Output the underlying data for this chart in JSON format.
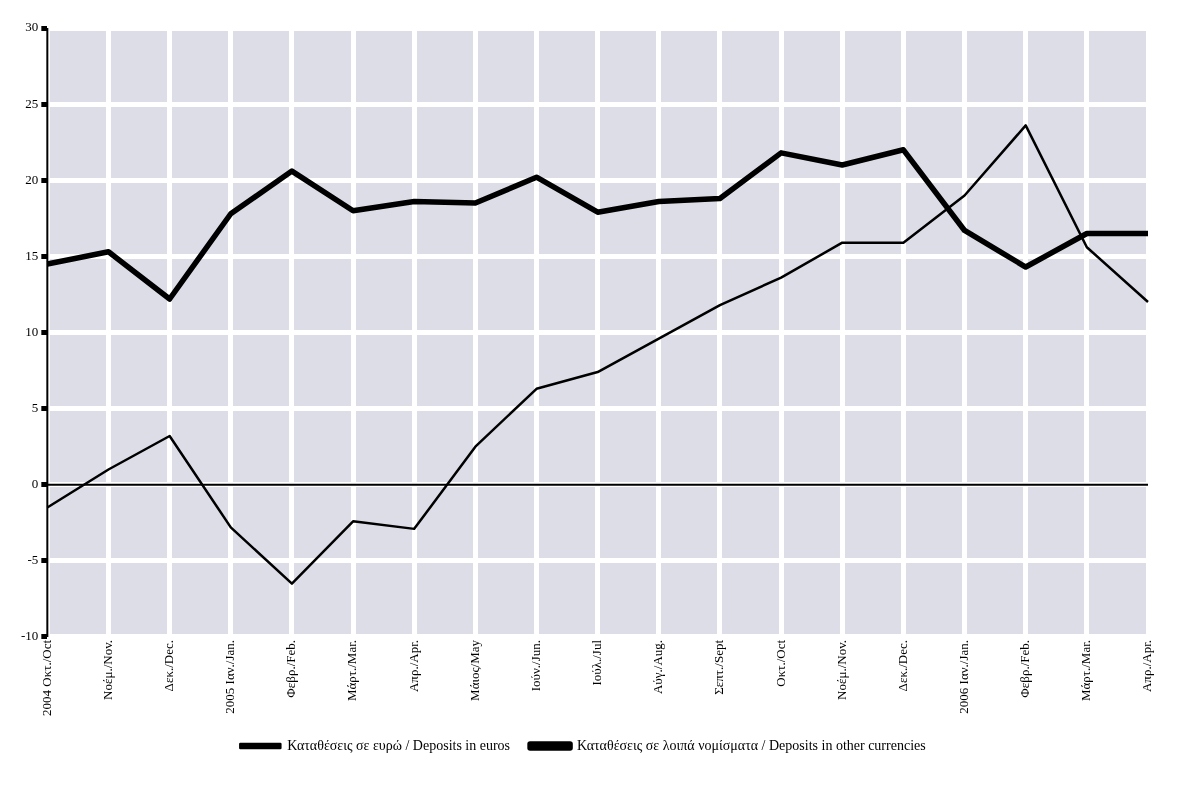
{
  "chart_data": {
    "type": "line",
    "categories": [
      "2004 Οκτ./Oct",
      "Νοέμ./Nov.",
      "Δεκ./Dec.",
      "2005 Ιαν./Jan.",
      "Φεβρ./Feb.",
      "Μάρτ./Mar.",
      "Απρ./Apr.",
      "Μάιος/May",
      "Ιούν./Jun.",
      "Ιούλ./Jul",
      "Αύγ./Aug.",
      "Σεπτ./Sept",
      "Οκτ./Oct",
      "Νοέμ./Nov.",
      "Δεκ./Dec.",
      "2006 Ιαν./Jan.",
      "Φεβρ./Feb.",
      "Μάρτ./Mar.",
      "Απρ./Apr."
    ],
    "series": [
      {
        "name": "Καταθέσεις σε ευρώ / Deposits in euros",
        "color": "#000000",
        "values": [
          -1.5,
          1,
          3.2,
          -2.8,
          -6.5,
          -2.4,
          -2.9,
          2.5,
          6.3,
          7.4,
          9.6,
          11.8,
          13.6,
          15.9,
          15.9,
          19,
          23.6,
          15.6,
          12
        ]
      },
      {
        "name": "Καταθέσεις σε λοιπά νομίσματα / Deposits in other currencies",
        "color": "#000000",
        "values": [
          14.5,
          15.3,
          12.2,
          17.8,
          20.6,
          18,
          18.6,
          18.5,
          20.2,
          17.9,
          18.6,
          18.8,
          21.8,
          21,
          22,
          16.7,
          14.3,
          16.5,
          16.5
        ]
      }
    ],
    "ylim": [
      -10,
      30
    ],
    "yticks": [
      -10,
      -5,
      0,
      5,
      10,
      15,
      20,
      25,
      30
    ],
    "grid": true,
    "legend": "bottom",
    "marker": "none",
    "line_style": "solid"
  }
}
